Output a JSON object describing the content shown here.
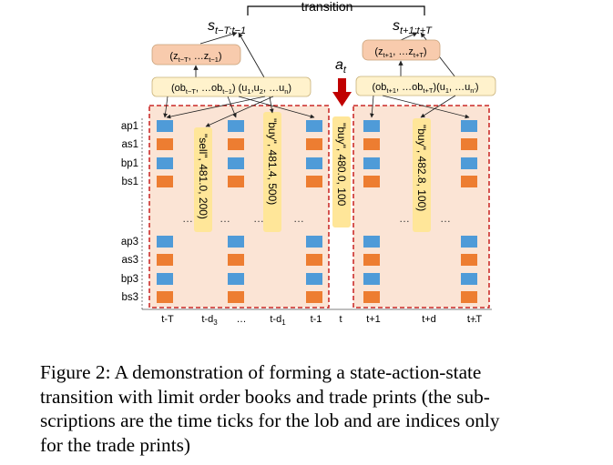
{
  "diagram": {
    "transition_label": "transition",
    "state_left": {
      "s": "s",
      "sub": "t−T:t−1"
    },
    "state_right": {
      "s": "s",
      "sub": "t+1:t+T"
    },
    "action": {
      "a": "a",
      "sub": "t"
    },
    "latent_left": "(z",
    "latent_left_parts": [
      "(z",
      "t−T",
      ", …z",
      "t−1",
      ")"
    ],
    "latent_right_parts": [
      "(z",
      "t+1",
      ", …z",
      "t+T",
      ")"
    ],
    "obs_left_parts": [
      "(ob",
      "t−T",
      ", …ob",
      "t−1",
      ") (u",
      "1",
      ",u",
      "2",
      ", …u",
      "n",
      ")"
    ],
    "obs_right_parts": [
      "(ob",
      "t+1",
      ", …ob",
      "t+T",
      ")(u",
      "1",
      ", …u",
      "n′",
      ")"
    ],
    "row_labels_top": [
      "ap1",
      "as1",
      "bp1",
      "bs1"
    ],
    "row_labels_bottom": [
      "ap3",
      "as3",
      "bp3",
      "bs3"
    ],
    "trade_prints": [
      {
        "text": "\"sell\", 481.0, 200)"
      },
      {
        "text": "\"buy\", 481.4, 500)"
      },
      {
        "text": "\"buy\", 480.0, 100"
      },
      {
        "text": "\"buy\", 482.8, 100)"
      }
    ],
    "ellipsis": "…",
    "axis_ticks": [
      {
        "main": "t-T",
        "sub": ""
      },
      {
        "main": "t-d",
        "sub": "3"
      },
      {
        "main": "…",
        "sub": ""
      },
      {
        "main": "t-d",
        "sub": "1"
      },
      {
        "main": "t-1",
        "sub": ""
      },
      {
        "main": "t",
        "sub": ""
      },
      {
        "main": "t+1",
        "sub": ""
      },
      {
        "main": "t+d",
        "sub": ""
      },
      {
        "main": "…",
        "sub": ""
      },
      {
        "main": "t+T",
        "sub": ""
      }
    ],
    "colors": {
      "ask": "#ed7d31",
      "bid": "#4f9bd8",
      "panel_fill": "#fbe4d5",
      "panel_border": "#c00000",
      "trade_fill": "#ffe699",
      "latent_fill": "#f8cbad",
      "obs_fill": "#fff2cc",
      "action_arrow": "#c00000"
    }
  },
  "caption": {
    "lines": [
      "Figure 2: A demonstration of forming a state-action-state",
      "transition with limit order books and trade prints (the sub-",
      "scriptions are the time ticks for the lob and are indices only",
      "for the trade prints)"
    ]
  }
}
